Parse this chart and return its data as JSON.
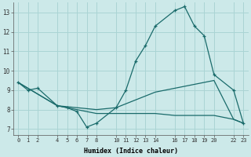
{
  "xlabel": "Humidex (Indice chaleur)",
  "bg_color": "#cce9e9",
  "grid_color": "#aad4d4",
  "line_color": "#1a6b6b",
  "xlim": [
    -0.5,
    23.5
  ],
  "ylim": [
    6.7,
    13.5
  ],
  "xticks": [
    0,
    1,
    2,
    4,
    5,
    6,
    7,
    8,
    10,
    11,
    12,
    13,
    14,
    16,
    17,
    18,
    19,
    20,
    22,
    23
  ],
  "yticks": [
    7,
    8,
    9,
    10,
    11,
    12,
    13
  ],
  "lines": [
    {
      "x": [
        0,
        1,
        2,
        4,
        5,
        6,
        7,
        8,
        10,
        11,
        12,
        13,
        14,
        16,
        17,
        18,
        19,
        20,
        22,
        23
      ],
      "y": [
        9.4,
        9.0,
        9.1,
        8.2,
        8.1,
        7.9,
        7.1,
        7.3,
        8.1,
        9.0,
        10.5,
        11.3,
        12.3,
        13.1,
        13.3,
        12.3,
        11.8,
        9.8,
        9.0,
        7.3
      ],
      "has_markers": true
    },
    {
      "x": [
        0,
        4,
        8,
        10,
        11,
        12,
        13,
        14,
        16,
        17,
        18,
        19,
        20,
        22,
        23
      ],
      "y": [
        9.4,
        8.2,
        8.0,
        8.1,
        8.3,
        8.5,
        8.7,
        8.9,
        9.1,
        9.2,
        9.3,
        9.4,
        9.5,
        7.5,
        7.3
      ],
      "has_markers": false
    },
    {
      "x": [
        0,
        4,
        8,
        10,
        11,
        12,
        13,
        14,
        16,
        17,
        18,
        19,
        20,
        22,
        23
      ],
      "y": [
        9.4,
        8.2,
        7.8,
        7.8,
        7.8,
        7.8,
        7.8,
        7.8,
        7.7,
        7.7,
        7.7,
        7.7,
        7.7,
        7.5,
        7.3
      ],
      "has_markers": false
    }
  ]
}
